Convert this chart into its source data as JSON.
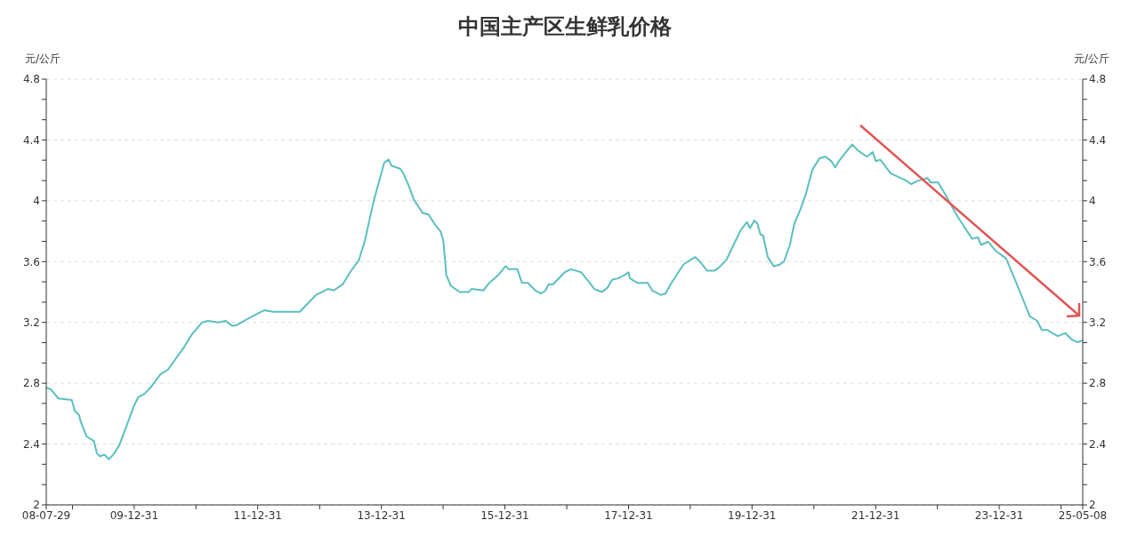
{
  "chart_data": {
    "type": "line",
    "title": "中国主产区生鲜乳价格",
    "ylabel": "元/公斤",
    "y2label": "元/公斤",
    "x": [
      "2008-07-29",
      "2008-08-25",
      "2008-10-08",
      "2008-12-27",
      "2009-01-13",
      "2009-02-08",
      "2009-02-17",
      "2009-03-24",
      "2009-05-07",
      "2009-05-24",
      "2009-06-11",
      "2009-07-08",
      "2009-08-03",
      "2009-08-29",
      "2009-10-03",
      "2009-12-29",
      "2010-01-25",
      "2010-03-01",
      "2010-04-05",
      "2010-06-05",
      "2010-07-19",
      "2010-10-23",
      "2010-12-06",
      "2011-02-05",
      "2011-03-12",
      "2011-05-12",
      "2011-06-25",
      "2011-07-30",
      "2011-08-25",
      "2011-10-26",
      "2012-01-03",
      "2012-02-08",
      "2012-03-31",
      "2012-06-26",
      "2012-09-05",
      "2012-10-18",
      "2012-12-09",
      "2013-02-18",
      "2013-03-25",
      "2013-05-16",
      "2013-06-29",
      "2013-08-20",
      "2013-09-25",
      "2013-11-16",
      "2014-01-17",
      "2014-02-12",
      "2014-03-01",
      "2014-04-23",
      "2014-05-10",
      "2014-06-14",
      "2014-07-10",
      "2014-08-31",
      "2014-10-06",
      "2014-11-09",
      "2014-12-15",
      "2015-01-01",
      "2015-01-19",
      "2015-02-15",
      "2015-04-08",
      "2015-05-31",
      "2015-06-17",
      "2015-08-26",
      "2015-09-30",
      "2015-11-21",
      "2016-01-04",
      "2016-01-22",
      "2016-03-14",
      "2016-04-10",
      "2016-05-15",
      "2016-06-28",
      "2016-08-01",
      "2016-08-28",
      "2016-09-14",
      "2016-10-10",
      "2016-12-19",
      "2017-01-24",
      "2017-03-26",
      "2017-05-09",
      "2017-06-12",
      "2017-07-26",
      "2017-08-30",
      "2017-09-25",
      "2017-10-31",
      "2017-12-05",
      "2017-12-31",
      "2018-01-08",
      "2018-02-21",
      "2018-04-23",
      "2018-05-20",
      "2018-07-11",
      "2018-08-07",
      "2018-09-11",
      "2018-10-16",
      "2018-11-20",
      "2018-12-16",
      "2019-01-29",
      "2019-03-05",
      "2019-04-09",
      "2019-05-22",
      "2019-06-18",
      "2019-08-01",
      "2019-09-13",
      "2019-10-27",
      "2019-12-01",
      "2019-12-19",
      "2020-01-14",
      "2020-02-01",
      "2020-02-18",
      "2020-03-06",
      "2020-04-02",
      "2020-05-07",
      "2020-06-11",
      "2020-07-07",
      "2020-08-11",
      "2020-09-06",
      "2020-10-11",
      "2020-11-15",
      "2020-12-20",
      "2021-02-02",
      "2021-03-09",
      "2021-04-13",
      "2021-05-06",
      "2021-05-27",
      "2021-07-01",
      "2021-08-14",
      "2021-09-18",
      "2021-11-09",
      "2021-12-14",
      "2022-01-01",
      "2022-01-27",
      "2022-03-30",
      "2022-06-16",
      "2022-07-30",
      "2022-09-03",
      "2022-11-03",
      "2022-11-21",
      "2023-01-04",
      "2023-02-16",
      "2023-04-27",
      "2023-06-01",
      "2023-07-24",
      "2023-08-28",
      "2023-09-14",
      "2023-10-28",
      "2023-12-11",
      "2024-02-10",
      "2024-04-03",
      "2024-05-17",
      "2024-06-29",
      "2024-08-12",
      "2024-09-08",
      "2024-10-12",
      "2024-11-07",
      "2024-12-13",
      "2025-01-25",
      "2025-03-01",
      "2025-04-05",
      "2025-05-08"
    ],
    "series": [
      {
        "color": "#5bbfc0",
        "values": [
          2.77,
          2.76,
          2.7,
          2.69,
          2.62,
          2.59,
          2.55,
          2.45,
          2.42,
          2.34,
          2.32,
          2.33,
          2.3,
          2.33,
          2.39,
          2.65,
          2.71,
          2.73,
          2.77,
          2.86,
          2.89,
          3.04,
          3.12,
          3.2,
          3.21,
          3.2,
          3.21,
          3.18,
          3.18,
          3.22,
          3.26,
          3.28,
          3.27,
          3.27,
          3.27,
          3.32,
          3.38,
          3.42,
          3.41,
          3.45,
          3.53,
          3.61,
          3.74,
          4.0,
          4.25,
          4.27,
          4.23,
          4.21,
          4.18,
          4.09,
          4.01,
          3.92,
          3.91,
          3.85,
          3.8,
          3.74,
          3.51,
          3.44,
          3.4,
          3.4,
          3.42,
          3.41,
          3.46,
          3.51,
          3.57,
          3.55,
          3.55,
          3.46,
          3.46,
          3.41,
          3.39,
          3.41,
          3.45,
          3.45,
          3.53,
          3.55,
          3.53,
          3.47,
          3.42,
          3.4,
          3.43,
          3.48,
          3.49,
          3.51,
          3.53,
          3.49,
          3.46,
          3.46,
          3.41,
          3.38,
          3.39,
          3.46,
          3.52,
          3.58,
          3.6,
          3.63,
          3.59,
          3.54,
          3.54,
          3.56,
          3.61,
          3.71,
          3.81,
          3.86,
          3.82,
          3.87,
          3.85,
          3.78,
          3.77,
          3.63,
          3.57,
          3.58,
          3.6,
          3.71,
          3.85,
          3.94,
          4.05,
          4.2,
          4.28,
          4.29,
          4.26,
          4.22,
          4.26,
          4.31,
          4.37,
          4.33,
          4.29,
          4.32,
          4.26,
          4.27,
          4.18,
          4.14,
          4.11,
          4.13,
          4.15,
          4.12,
          4.12,
          4.04,
          3.9,
          3.84,
          3.75,
          3.76,
          3.71,
          3.73,
          3.67,
          3.62,
          3.48,
          3.36,
          3.24,
          3.21,
          3.15,
          3.15,
          3.13,
          3.11,
          3.13,
          3.09,
          3.07,
          3.08
        ]
      }
    ],
    "xlim": [
      "2008-07-29",
      "2025-05-08"
    ],
    "xticks": [
      {
        "value": "2008-07-29",
        "label": "08-07-29"
      },
      {
        "value": "2008-12-31",
        "label": null
      },
      {
        "value": "2009-12-31",
        "label": "09-12-31"
      },
      {
        "value": "2010-12-31",
        "label": null
      },
      {
        "value": "2011-12-31",
        "label": "11-12-31"
      },
      {
        "value": "2012-12-31",
        "label": null
      },
      {
        "value": "2013-12-31",
        "label": "13-12-31"
      },
      {
        "value": "2014-12-31",
        "label": null
      },
      {
        "value": "2015-12-31",
        "label": "15-12-31"
      },
      {
        "value": "2016-12-31",
        "label": null
      },
      {
        "value": "2017-12-31",
        "label": "17-12-31"
      },
      {
        "value": "2018-12-31",
        "label": null
      },
      {
        "value": "2019-12-31",
        "label": "19-12-31"
      },
      {
        "value": "2020-12-31",
        "label": null
      },
      {
        "value": "2021-12-31",
        "label": "21-12-31"
      },
      {
        "value": "2022-12-31",
        "label": null
      },
      {
        "value": "2023-12-31",
        "label": "23-12-31"
      },
      {
        "value": "2024-12-31",
        "label": null
      },
      {
        "value": "2025-05-08",
        "label": "25-05-08"
      }
    ],
    "ylim": [
      2,
      4.8
    ],
    "yticks": [
      2,
      {
        "value": 2.133,
        "label": null
      },
      {
        "value": 2.267,
        "label": null
      },
      2.4,
      {
        "value": 2.533,
        "label": null
      },
      {
        "value": 2.667,
        "label": null
      },
      2.8,
      {
        "value": 2.933,
        "label": null
      },
      {
        "value": 3.067,
        "label": null
      },
      3.2,
      {
        "value": 3.333,
        "label": null
      },
      {
        "value": 3.467,
        "label": null
      },
      3.6,
      {
        "value": 3.733,
        "label": null
      },
      {
        "value": 3.867,
        "label": null
      },
      4,
      {
        "value": 4.133,
        "label": null
      },
      {
        "value": 4.267,
        "label": null
      },
      4.4,
      {
        "value": 4.533,
        "label": null
      },
      {
        "value": 4.667,
        "label": null
      },
      4.8
    ],
    "y2lim": [
      2,
      4.8
    ],
    "y2ticks": [
      2,
      {
        "value": 2.133,
        "label": null
      },
      {
        "value": 2.267,
        "label": null
      },
      2.4,
      {
        "value": 2.533,
        "label": null
      },
      {
        "value": 2.667,
        "label": null
      },
      2.8,
      {
        "value": 2.933,
        "label": null
      },
      {
        "value": 3.067,
        "label": null
      },
      3.2,
      {
        "value": 3.333,
        "label": null
      },
      {
        "value": 3.467,
        "label": null
      },
      3.6,
      {
        "value": 3.733,
        "label": null
      },
      {
        "value": 3.867,
        "label": null
      },
      4,
      {
        "value": 4.133,
        "label": null
      },
      {
        "value": 4.267,
        "label": null
      },
      4.4,
      {
        "value": 4.533,
        "label": null
      },
      {
        "value": 4.667,
        "label": null
      },
      4.8
    ],
    "grid": "y",
    "marker": "none"
  }
}
